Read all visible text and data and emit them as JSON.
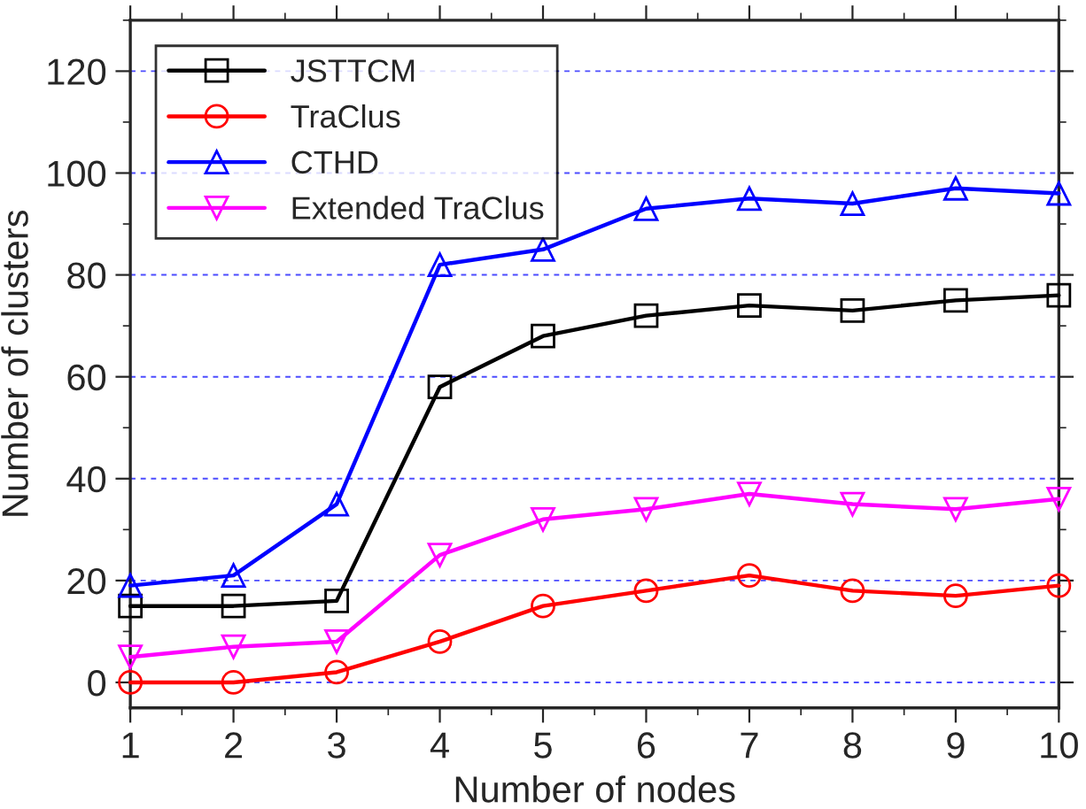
{
  "chart_data": {
    "type": "line",
    "xlabel": "Number of nodes",
    "ylabel": "Number of clusters",
    "x": [
      1,
      2,
      3,
      4,
      5,
      6,
      7,
      8,
      9,
      10
    ],
    "xlim": [
      1,
      10
    ],
    "xticks": [
      1,
      2,
      3,
      4,
      5,
      6,
      7,
      8,
      9,
      10
    ],
    "ylim": [
      -5,
      130
    ],
    "yticks": [
      0,
      20,
      40,
      60,
      80,
      100,
      120
    ],
    "grid": "y",
    "legend": "top left",
    "line_style": "solid",
    "series": [
      {
        "name": "JSTTCM",
        "color": "#000000",
        "marker": "square",
        "values": [
          15,
          15,
          16,
          58,
          68,
          72,
          74,
          73,
          75,
          76
        ]
      },
      {
        "name": "TraClus",
        "color": "#ff0000",
        "marker": "circle",
        "values": [
          0,
          0,
          2,
          8,
          15,
          18,
          21,
          18,
          17,
          19
        ]
      },
      {
        "name": "CTHD",
        "color": "#0000ff",
        "marker": "triangle",
        "values": [
          19,
          21,
          35,
          82,
          85,
          93,
          95,
          94,
          97,
          96
        ]
      },
      {
        "name": "Extended TraClus",
        "color": "#ff00ff",
        "marker": "triangle_down",
        "values": [
          5,
          7,
          8,
          25,
          32,
          34,
          37,
          35,
          34,
          36
        ]
      }
    ]
  }
}
